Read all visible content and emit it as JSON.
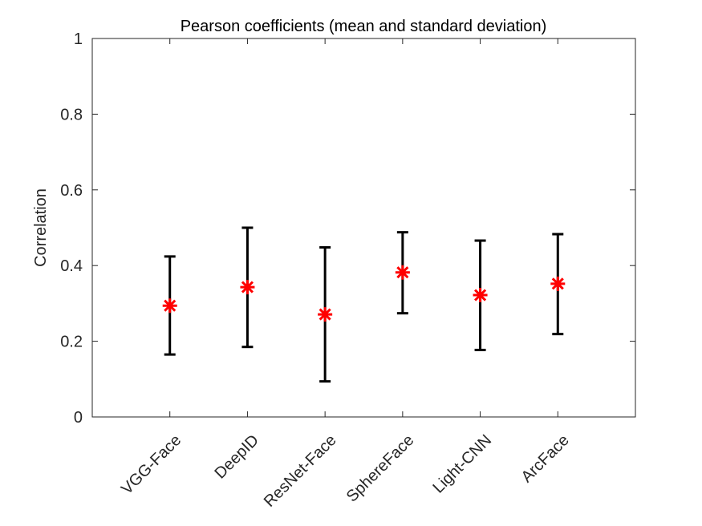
{
  "chart_data": {
    "type": "errorbar",
    "title": "Pearson coefficients (mean and standard deviation)",
    "xlabel": "",
    "ylabel": "Correlation",
    "ylim": [
      0,
      1
    ],
    "yticks": [
      0,
      0.2,
      0.4,
      0.6,
      0.8,
      1
    ],
    "ytick_labels": [
      "0",
      "0.2",
      "0.4",
      "0.6",
      "0.8",
      "1"
    ],
    "xlim": [
      0,
      7
    ],
    "categories": [
      "VGG-Face",
      "DeepID",
      "ResNet-Face",
      "SphereFace",
      "Light-CNN",
      "ArcFace"
    ],
    "means": [
      0.294,
      0.343,
      0.271,
      0.382,
      0.322,
      0.352
    ],
    "lower": [
      0.165,
      0.185,
      0.094,
      0.274,
      0.177,
      0.219
    ],
    "upper": [
      0.424,
      0.5,
      0.448,
      0.488,
      0.466,
      0.483
    ],
    "colors": {
      "marker": "#ff0000",
      "errorbar": "#000000",
      "axes": "#262626"
    }
  }
}
